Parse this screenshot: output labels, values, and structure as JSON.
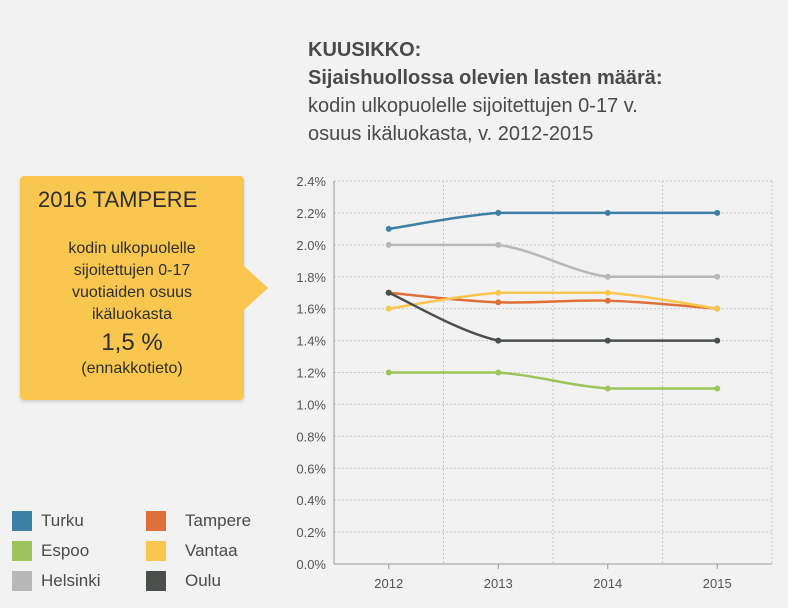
{
  "title": {
    "line1": "KUUSIKKO:",
    "line2": "Sijaishuollossa olevien lasten määrä:",
    "line3": "kodin ulkopuolelle sijoitettujen 0-17 v.",
    "line4": "osuus ikäluokasta, v. 2012-2015"
  },
  "callout": {
    "heading": "2016 TAMPERE",
    "line1": "kodin ulkopuolelle",
    "line2": "sijoitettujen 0-17",
    "line3": "vuotiaiden osuus",
    "line4": "ikäluokasta",
    "value": "1,5 %",
    "note": "(ennakkotieto)",
    "color": "#f9c74f"
  },
  "chart_data": {
    "type": "line",
    "x": [
      "2012",
      "2013",
      "2014",
      "2015"
    ],
    "ylim": [
      0,
      2.4
    ],
    "y_ticks": [
      "0.0%",
      "0.2%",
      "0.4%",
      "0.6%",
      "0.8%",
      "1.0%",
      "1.2%",
      "1.4%",
      "1.6%",
      "1.8%",
      "2.0%",
      "2.2%",
      "2.4%"
    ],
    "grid": true,
    "legend_position": "bottom-left",
    "series": [
      {
        "name": "Turku",
        "color": "#3e7fa6",
        "values": [
          2.1,
          2.2,
          2.2,
          2.2
        ]
      },
      {
        "name": "Espoo",
        "color": "#9dc35a",
        "values": [
          1.2,
          1.2,
          1.1,
          1.1
        ]
      },
      {
        "name": "Helsinki",
        "color": "#b8b8b8",
        "values": [
          2.0,
          2.0,
          1.8,
          1.8
        ]
      },
      {
        "name": "Tampere",
        "color": "#e0703a",
        "values": [
          1.7,
          1.64,
          1.65,
          1.6
        ]
      },
      {
        "name": "Vantaa",
        "color": "#f9c74f",
        "values": [
          1.6,
          1.7,
          1.7,
          1.6
        ]
      },
      {
        "name": "Oulu",
        "color": "#4a4f4c",
        "values": [
          1.7,
          1.4,
          1.4,
          1.4
        ]
      }
    ]
  }
}
